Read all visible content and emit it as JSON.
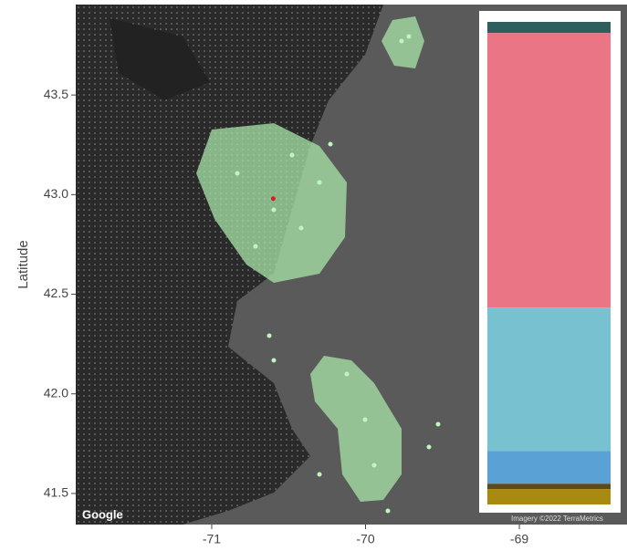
{
  "chart_data": {
    "type": "map",
    "ylabel": "Latitude",
    "xlim": [
      -71.884,
      -68.3
    ],
    "ylim": [
      41.344,
      43.954
    ],
    "xticks": [
      -71,
      -70,
      -69
    ],
    "yticks": [
      43.5,
      {
        "value": 43,
        "label": "43.0"
      },
      42.5,
      {
        "value": 42,
        "label": "42.0"
      },
      41.5
    ],
    "marker": {
      "x": -70.6,
      "y": 42.98,
      "color": "#cc2222"
    },
    "attribution": [
      "Google",
      "Imagery ©2022 TerraMetrics"
    ],
    "inset": {
      "type": "stacked-bar",
      "segments": [
        {
          "color": "#2f5f5c",
          "value": 2.3
        },
        {
          "color": "#e97585",
          "value": 56.9
        },
        {
          "color": "#77c1d0",
          "value": 29.7
        },
        {
          "color": "#5aa2d6",
          "value": 6.8
        },
        {
          "color": "#5c4a1e",
          "value": 1.1
        },
        {
          "color": "#a88a12",
          "value": 3.2
        }
      ]
    }
  }
}
